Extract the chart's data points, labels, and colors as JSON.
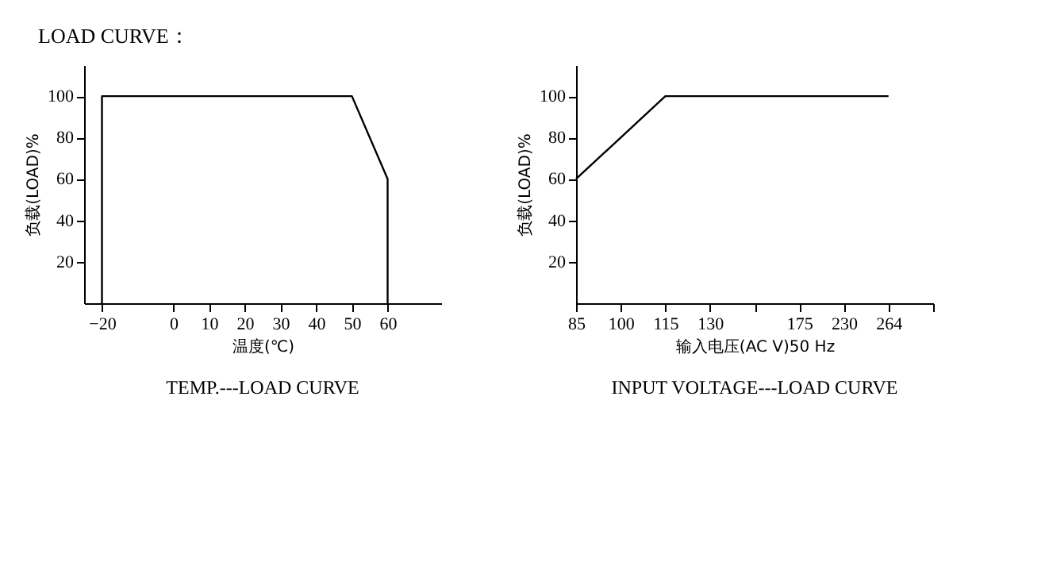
{
  "chart_data": [
    {
      "type": "line",
      "title": "TEMP.---LOAD CURVE",
      "annotations": [
        "LOAD CURVE："
      ],
      "xlabel": "温度(℃)",
      "ylabel": "负载(LOAD)%",
      "x": [
        -20,
        -20,
        50,
        60,
        60
      ],
      "series": [
        {
          "color": "#000000",
          "values": [
            0,
            100,
            100,
            60,
            0
          ]
        }
      ],
      "xlim": [
        -25,
        75
      ],
      "xticks": [
        -20,
        0,
        10,
        20,
        30,
        40,
        50,
        60
      ],
      "ylim": [
        0,
        115
      ],
      "yticks": [
        20,
        40,
        60,
        80,
        100
      ],
      "grid": false,
      "legend": false,
      "marker": "none",
      "line_style": "solid"
    },
    {
      "type": "line",
      "title": "INPUT VOLTAGE---LOAD CURVE",
      "xlabel": "输入电压(AC V)50 Hz",
      "ylabel": "负载(LOAD)%",
      "categories": [
        "85",
        "100",
        "115",
        "130",
        null,
        "175",
        "230",
        "264",
        null
      ],
      "series": [
        {
          "color": "#000000",
          "values": [
            60,
            80,
            100,
            100,
            100,
            100,
            100,
            100,
            null
          ]
        }
      ],
      "ylim": [
        0,
        115
      ],
      "yticks": [
        20,
        40,
        60,
        80,
        100
      ],
      "grid": false,
      "legend": false,
      "marker": "none",
      "line_style": "solid"
    }
  ]
}
